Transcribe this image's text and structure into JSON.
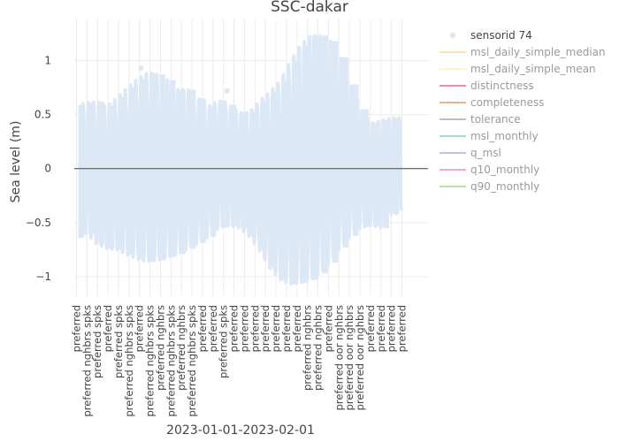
{
  "chart_data": {
    "type": "line",
    "title": "SSC-dakar",
    "xlabel": "2023-01-01-2023-02-01",
    "ylabel": "Sea level (m)",
    "ylim": [
      -1.18,
      1.38
    ],
    "y_ticks": [
      {
        "value": 1,
        "label": "1"
      },
      {
        "value": 0.5,
        "label": "0.5"
      },
      {
        "value": 0,
        "label": "0"
      },
      {
        "value": -0.5,
        "label": "−0.5"
      },
      {
        "value": -1,
        "label": "−1"
      }
    ],
    "x_ticks": [
      "preferred",
      "preferred nghbrs spks",
      "preferred spks",
      "preferred",
      "preferred spks",
      "preferred nghbrs spks",
      "preferred",
      "preferred nghbrs spks",
      "preferred nghbrs",
      "preferred nghbrs spks",
      "preferred nghbrs",
      "preferred nghbrs spks",
      "preferred",
      "preferred",
      "preferred spks",
      "preferred",
      "preferred",
      "preferred",
      "preferred",
      "preferred",
      "preferred",
      "preferred",
      "preferred nghbrs",
      "preferred nghbrs",
      "preferred",
      "preferred oor nghbrs",
      "preferred oor nghbrs",
      "preferred oor nghbrs",
      "preferred",
      "preferred",
      "preferred",
      "preferred"
    ],
    "daily_range": {
      "days": 32,
      "high": [
        0.59,
        0.61,
        0.62,
        0.58,
        0.66,
        0.75,
        0.83,
        0.89,
        0.87,
        0.82,
        0.73,
        0.73,
        0.65,
        0.58,
        0.63,
        0.59,
        0.52,
        0.52,
        0.63,
        0.71,
        0.81,
        0.99,
        1.14,
        1.23,
        1.23,
        1.18,
        1.03,
        0.78,
        0.55,
        0.42,
        0.45,
        0.47
      ],
      "low": [
        -0.64,
        -0.6,
        -0.7,
        -0.74,
        -0.75,
        -0.8,
        -0.84,
        -0.86,
        -0.85,
        -0.82,
        -0.79,
        -0.74,
        -0.69,
        -0.63,
        -0.55,
        -0.53,
        -0.55,
        -0.63,
        -0.76,
        -0.92,
        -1.03,
        -1.07,
        -1.06,
        -1.03,
        -0.97,
        -0.87,
        -0.73,
        -0.62,
        -0.54,
        -0.53,
        -0.55,
        -0.42
      ]
    },
    "outliers": [
      {
        "day": 6.35,
        "value": 0.93
      },
      {
        "day": 14.8,
        "value": 0.72
      }
    ],
    "legend": [
      {
        "label": "sensorid 74",
        "color": "#dce8f5",
        "kind": "marker",
        "active": true
      },
      {
        "label": "msl_daily_simple_median",
        "color": "#fde2b8",
        "kind": "line",
        "active": false
      },
      {
        "label": "msl_daily_simple_mean",
        "color": "#fdf6c6",
        "kind": "line",
        "active": false
      },
      {
        "label": "distinctness",
        "color": "#f08ab6",
        "kind": "line",
        "active": false
      },
      {
        "label": "completeness",
        "color": "#efae90",
        "kind": "line",
        "active": false
      },
      {
        "label": "tolerance",
        "color": "#bdbdbd",
        "kind": "line",
        "active": false
      },
      {
        "label": "msl_monthly",
        "color": "#a8dcc4",
        "kind": "line",
        "active": false
      },
      {
        "label": "q_msl",
        "color": "#c9bedf",
        "kind": "line",
        "active": false
      },
      {
        "label": "q10_monthly",
        "color": "#f4a9d2",
        "kind": "line",
        "active": false
      },
      {
        "label": "q90_monthly",
        "color": "#bfe0a2",
        "kind": "line",
        "active": false
      }
    ],
    "legend_position": "right",
    "grid": true,
    "zero_line": true,
    "colors": {
      "series": "#dce8f5",
      "grid": "#ececec",
      "zero_line": "#444444"
    }
  }
}
